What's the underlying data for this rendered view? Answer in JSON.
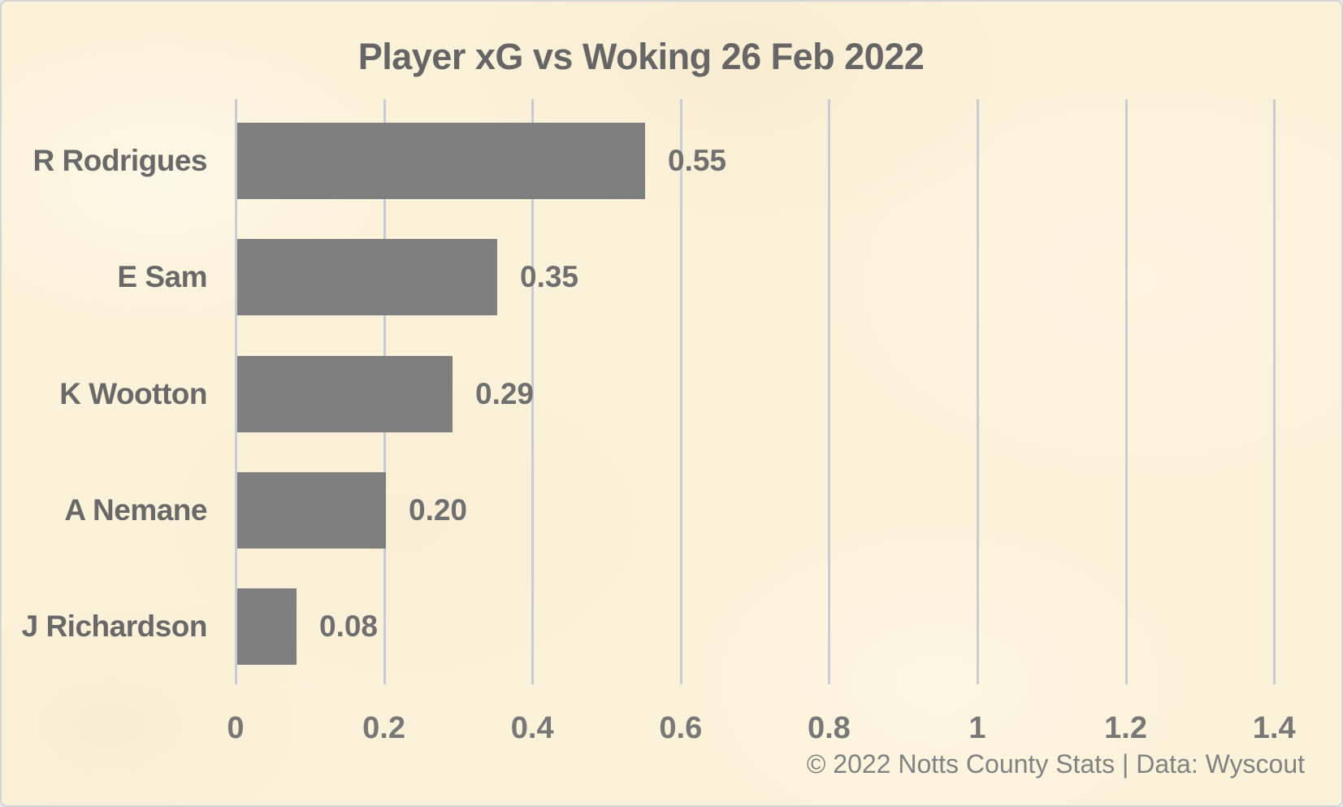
{
  "chart_data": {
    "type": "bar",
    "orientation": "horizontal",
    "title": "Player xG vs Woking 26 Feb 2022",
    "categories": [
      "R Rodrigues",
      "E Sam",
      "K Wootton",
      "A Nemane",
      "J Richardson"
    ],
    "values": [
      0.55,
      0.35,
      0.29,
      0.2,
      0.08
    ],
    "bar_labels": [
      "0.55",
      "0.35",
      "0.29",
      "0.20",
      "0.08"
    ],
    "xlabel": "",
    "ylabel": "",
    "x_tick_labels": [
      "0",
      "0.2",
      "0.4",
      "0.6",
      "0.8",
      "1",
      "1.2",
      "1.4"
    ],
    "x_tick_values": [
      0,
      0.2,
      0.4,
      0.6,
      0.8,
      1.0,
      1.2,
      1.4
    ],
    "xlim": [
      0,
      1.45
    ],
    "grid": true,
    "legend": false,
    "colors": {
      "bar": "#7f7f7f",
      "background": "#fbf2da",
      "gridline": "#c8cdd5",
      "border": "#d3d4d6",
      "title_text": "#666666",
      "category_text": "#696969",
      "value_text": "#707070",
      "tick_text": "#787878",
      "footer_text": "#828282"
    }
  },
  "footer": {
    "credit": "© 2022 Notts County Stats | Data: Wyscout"
  }
}
